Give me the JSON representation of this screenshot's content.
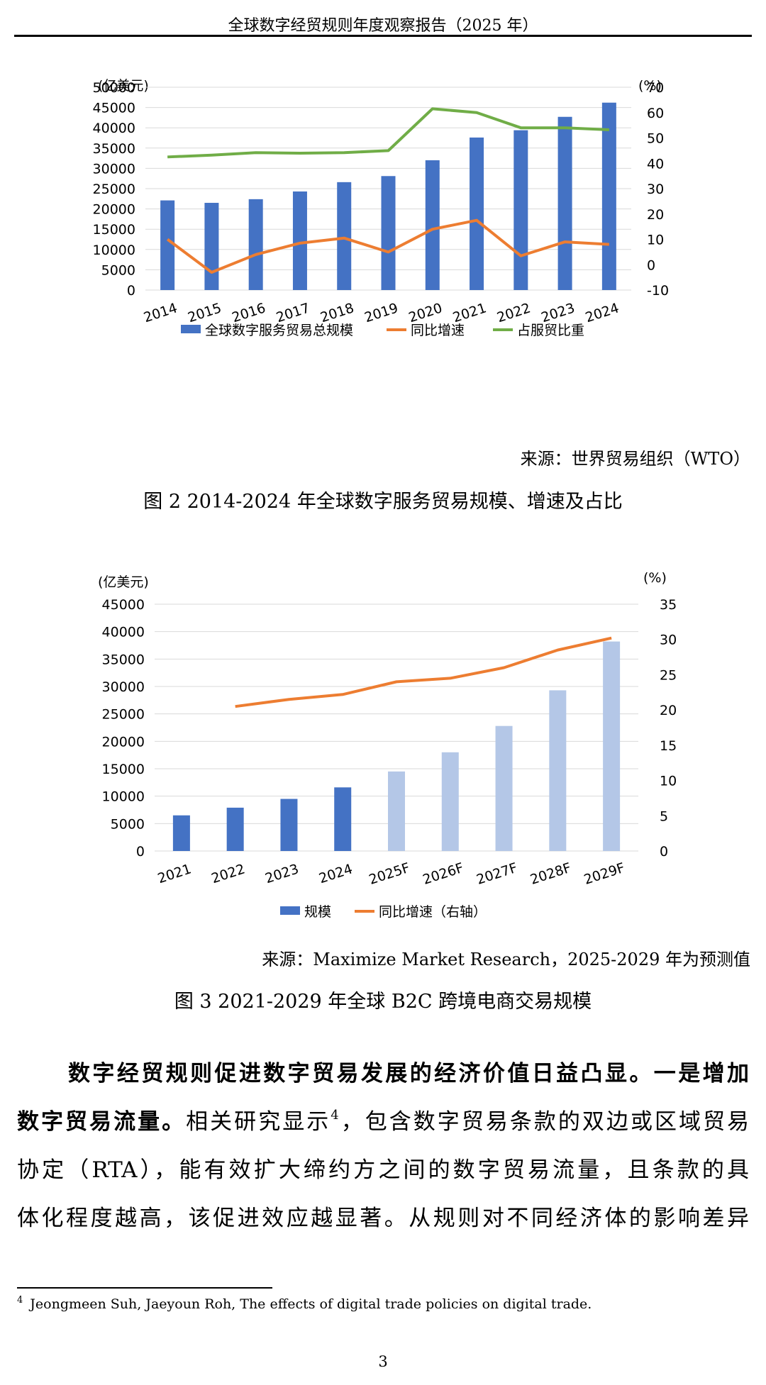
{
  "header": {
    "title": "全球数字经贸规则年度观察报告（2025 年）"
  },
  "chart1": {
    "source": "来源：世界贸易组织（WTO）",
    "caption": "图  2 2014-2024 年全球数字服务贸易规模、增速及占比",
    "left_unit": "(亿美元)",
    "right_unit": "(%)",
    "chart_data": {
      "type": "bar",
      "categories": [
        "2014",
        "2015",
        "2016",
        "2017",
        "2018",
        "2019",
        "2020",
        "2021",
        "2022",
        "2023",
        "2024"
      ],
      "series": [
        {
          "name": "全球数字服务贸易总规模",
          "type": "bar",
          "axis": "left",
          "color": "#4472C4",
          "values": [
            22100,
            21500,
            22400,
            24300,
            26600,
            28100,
            32000,
            37600,
            39400,
            42700,
            46200
          ]
        },
        {
          "name": "同比增速",
          "type": "line",
          "axis": "right",
          "color": "#ED7D31",
          "values": [
            10,
            -3,
            4,
            8.5,
            10.5,
            5,
            14,
            17.5,
            3.5,
            9,
            8
          ]
        },
        {
          "name": "占服贸比重",
          "type": "line",
          "axis": "right",
          "color": "#70AD47",
          "values": [
            42.5,
            43.2,
            44.2,
            44,
            44.2,
            45,
            61.5,
            60,
            54,
            54,
            53.2
          ]
        }
      ],
      "ylim_left": [
        0,
        50000
      ],
      "yticks_left": [
        "50000",
        "45000",
        "40000",
        "35000",
        "30000",
        "25000",
        "20000",
        "15000",
        "10000",
        "5000",
        "0"
      ],
      "ylim_right": [
        -10,
        70
      ],
      "yticks_right": [
        "70",
        "60",
        "50",
        "40",
        "30",
        "20",
        "10",
        "0",
        "-10"
      ],
      "grid": true,
      "legend_position": "bottom"
    }
  },
  "chart2": {
    "source": "来源：Maximize Market Research，2025-2029 年为预测值",
    "caption": "图  3 2021-2029 年全球 B2C 跨境电商交易规模",
    "left_unit": "(亿美元)",
    "right_unit": "(%)",
    "chart_data": {
      "type": "bar",
      "categories": [
        "2021",
        "2022",
        "2023",
        "2024",
        "2025F",
        "2026F",
        "2027F",
        "2028F",
        "2029F"
      ],
      "series": [
        {
          "name": "规模",
          "type": "bar",
          "axis": "left",
          "color": "#4472C4",
          "forecast_color": "#B4C7E7",
          "values": [
            6500,
            7900,
            9500,
            11600,
            14500,
            18000,
            22800,
            29300,
            38200
          ]
        },
        {
          "name": "同比增速（右轴）",
          "type": "line",
          "axis": "right",
          "color": "#ED7D31",
          "values": [
            null,
            20.5,
            21.5,
            22.2,
            24,
            24.5,
            26,
            28.5,
            30.2
          ]
        }
      ],
      "forecast_from_index": 4,
      "ylim_left": [
        0,
        45000
      ],
      "yticks_left": [
        "45000",
        "40000",
        "35000",
        "30000",
        "25000",
        "20000",
        "15000",
        "10000",
        "5000",
        "0"
      ],
      "ylim_right": [
        0,
        35
      ],
      "yticks_right": [
        "35",
        "30",
        "25",
        "20",
        "15",
        "10",
        "5",
        "0"
      ],
      "grid": true,
      "legend_position": "bottom"
    }
  },
  "body": {
    "line1_bold_a": "数字经贸规则促进数字贸易发展的经济价值日益凸显。",
    "line1_bold_b": "一是增加",
    "line2_bold": "数字贸易流量。",
    "line2_text": "相关研究显示",
    "footnote_ref": "4",
    "line2_text_b": "，包含数字贸易条款的双边或区域贸易",
    "line3": "协定（RTA），能有效扩大缔约方之间的数字贸易流量，且条款的具",
    "line4": "体化程度越高，该促进效应越显著。从规则对不同经济体的影响差异"
  },
  "footnote": {
    "number": "4",
    "text": "Jeongmeen Suh, Jaeyoun Roh, The effects of digital trade policies on digital trade."
  },
  "page": {
    "number": "3"
  }
}
